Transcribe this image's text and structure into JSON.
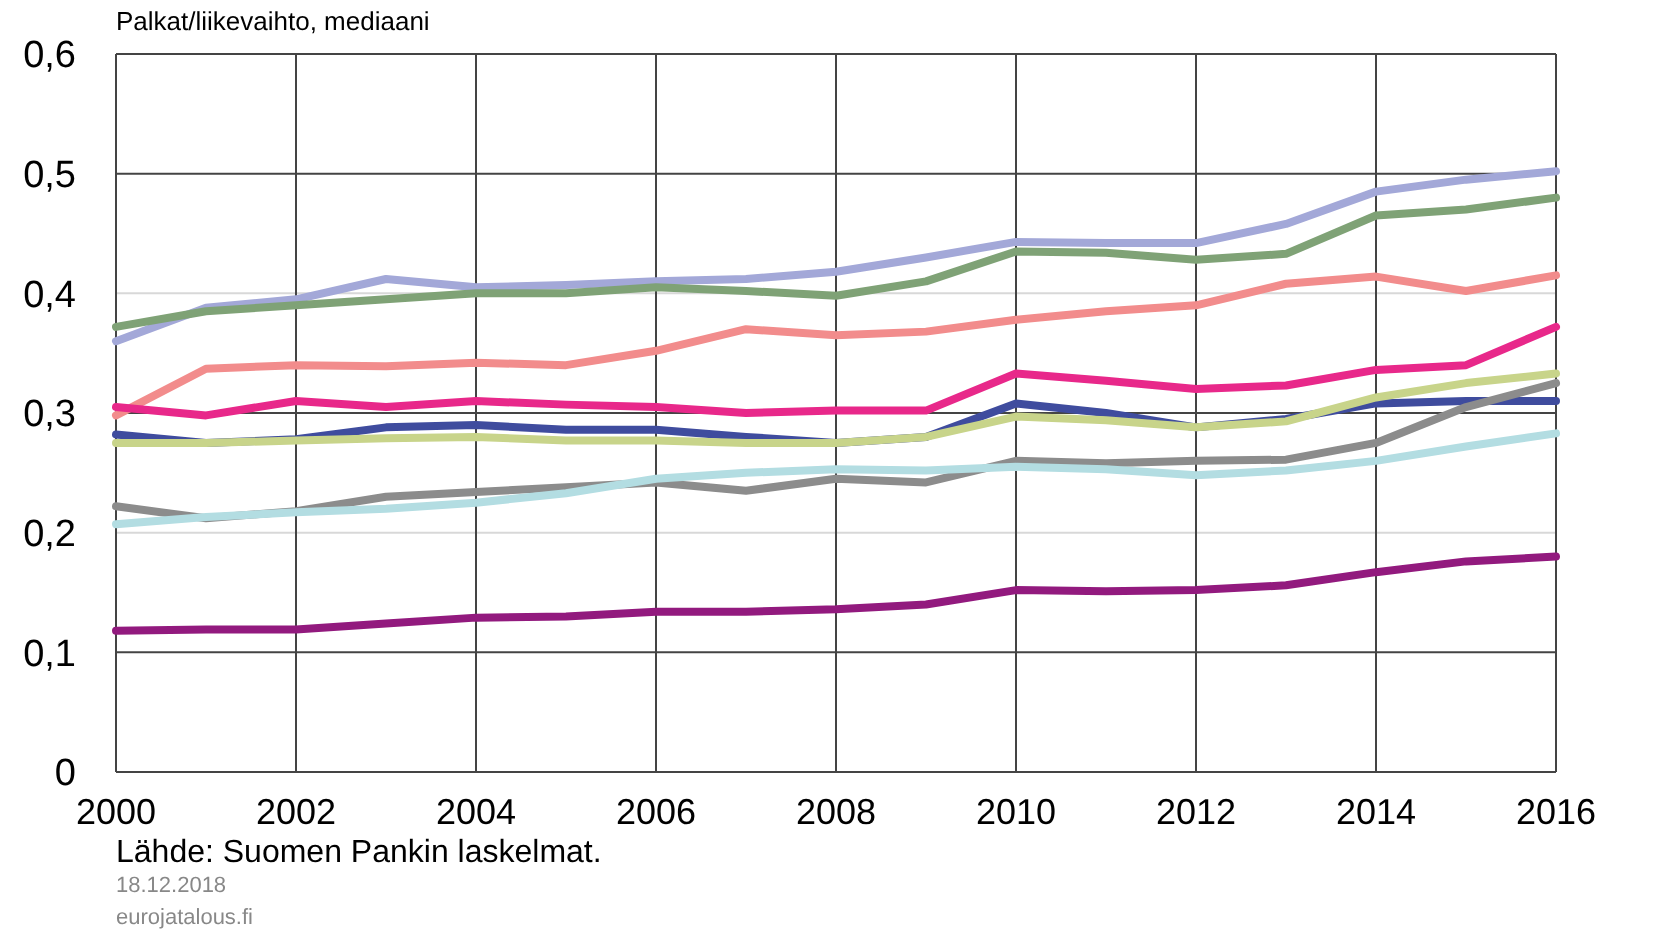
{
  "chart_data": {
    "type": "line",
    "ylabel": "Palkat/liikevaihto,  mediaani",
    "categories": [
      "2000",
      null,
      "2002",
      null,
      "2004",
      null,
      "2006",
      null,
      "2008",
      null,
      "2010",
      null,
      "2012",
      null,
      "2014",
      null,
      "2016"
    ],
    "series": [
      {
        "color": "#a3a8d8",
        "values": [
          0.36,
          0.388,
          0.395,
          0.412,
          0.405,
          0.407,
          0.41,
          0.412,
          0.418,
          0.43,
          0.443,
          0.442,
          0.442,
          0.458,
          0.485,
          0.495,
          0.502
        ]
      },
      {
        "color": "#7fa276",
        "values": [
          0.372,
          0.385,
          0.39,
          0.395,
          0.4,
          0.4,
          0.405,
          0.402,
          0.398,
          0.41,
          0.435,
          0.434,
          0.428,
          0.433,
          0.465,
          0.47,
          0.48
        ]
      },
      {
        "color": "#f28c8c",
        "values": [
          0.298,
          0.337,
          0.34,
          0.339,
          0.342,
          0.34,
          0.352,
          0.37,
          0.365,
          0.368,
          0.378,
          0.385,
          0.39,
          0.408,
          0.414,
          0.402,
          0.415
        ]
      },
      {
        "color": "#e8288a",
        "values": [
          0.305,
          0.298,
          0.31,
          0.305,
          0.31,
          0.307,
          0.305,
          0.3,
          0.302,
          0.302,
          0.333,
          0.327,
          0.32,
          0.323,
          0.336,
          0.34,
          0.372
        ]
      },
      {
        "color": "#3f4c9e",
        "values": [
          0.282,
          0.275,
          0.278,
          0.288,
          0.29,
          0.286,
          0.286,
          0.28,
          0.275,
          0.28,
          0.308,
          0.3,
          0.288,
          0.295,
          0.308,
          0.31,
          0.31
        ]
      },
      {
        "color": "#c8d48a",
        "values": [
          0.275,
          0.275,
          0.277,
          0.279,
          0.28,
          0.277,
          0.277,
          0.275,
          0.275,
          0.28,
          0.297,
          0.294,
          0.288,
          0.293,
          0.313,
          0.325,
          0.333
        ]
      },
      {
        "color": "#8c8c8c",
        "values": [
          0.222,
          0.212,
          0.218,
          0.23,
          0.234,
          0.238,
          0.242,
          0.235,
          0.245,
          0.242,
          0.26,
          0.258,
          0.26,
          0.261,
          0.275,
          0.305,
          0.325
        ]
      },
      {
        "color": "#b3dde2",
        "values": [
          0.207,
          0.213,
          0.217,
          0.22,
          0.225,
          0.233,
          0.245,
          0.25,
          0.253,
          0.252,
          0.255,
          0.253,
          0.248,
          0.252,
          0.26,
          0.272,
          0.283
        ]
      },
      {
        "color": "#921a7e",
        "values": [
          0.118,
          0.119,
          0.119,
          0.124,
          0.129,
          0.13,
          0.134,
          0.134,
          0.136,
          0.14,
          0.152,
          0.151,
          0.152,
          0.156,
          0.167,
          0.176,
          0.18
        ]
      }
    ],
    "ylim": [
      0,
      0.6
    ],
    "yticks": [
      {
        "value": 0,
        "label": "0"
      },
      {
        "value": 0.1,
        "label": "0,1"
      },
      {
        "value": 0.2,
        "label": "0,2"
      },
      {
        "value": 0.3,
        "label": "0,3"
      },
      {
        "value": 0.4,
        "label": "0,4"
      },
      {
        "value": 0.5,
        "label": "0,5"
      },
      {
        "value": 0.6,
        "label": "0,6"
      }
    ],
    "grid": true,
    "marker": "none",
    "line_style": "solid",
    "annotations": [
      "Lähde: Suomen Pankin laskelmat.",
      "18.12.2018",
      "eurojatalous.fi"
    ]
  }
}
